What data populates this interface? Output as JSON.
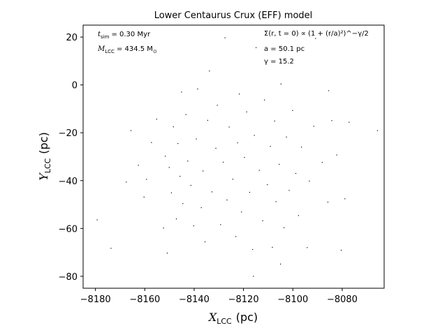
{
  "chart_data": {
    "type": "scatter",
    "title": "Lower Centaurus Crux (EFF) model",
    "xlabel": {
      "main": "X",
      "sub": "LCC",
      "unit": "(pc)"
    },
    "ylabel": {
      "main": "Y",
      "sub": "LCC",
      "unit": "(pc)"
    },
    "xlim": [
      -8185,
      -8063
    ],
    "ylim": [
      -85,
      25
    ],
    "xticks": [
      -8180,
      -8160,
      -8140,
      -8120,
      -8100,
      -8080
    ],
    "yticks": [
      20,
      0,
      -20,
      -40,
      -60,
      -80
    ],
    "xtick_labels": [
      "−8180",
      "−8160",
      "−8140",
      "−8120",
      "−8100",
      "−8080"
    ],
    "ytick_labels": [
      "20",
      "0",
      "−20",
      "−40",
      "−60",
      "−80"
    ],
    "grid": false,
    "marker_color": "#000000",
    "annotations": {
      "tsim": {
        "symbol": "t",
        "sub": "sim",
        "text": "= 0.30 Myr"
      },
      "mass": {
        "symbol": "M",
        "sub": "LCC",
        "text": "= 434.5 M",
        "sub2": "⊙"
      },
      "profile": {
        "text": "Σ(r, t = 0) ∝ (1 + (r/a)²)^−γ/2"
      },
      "a": {
        "text": "a = 50.1 pc"
      },
      "gamma": {
        "text": "γ = 15.2"
      }
    },
    "points": [
      [
        -8179.3,
        -56.4
      ],
      [
        -8173.7,
        -68.3
      ],
      [
        -8167.5,
        -40.6
      ],
      [
        -8165.6,
        -19.1
      ],
      [
        -8162.6,
        -33.6
      ],
      [
        -8160.3,
        -46.9
      ],
      [
        -8159.3,
        -39.5
      ],
      [
        -8157.3,
        -24.1
      ],
      [
        -8155.2,
        -14.3
      ],
      [
        -8152.4,
        -59.8
      ],
      [
        -8151.7,
        -29.8
      ],
      [
        -8150.9,
        -70.3
      ],
      [
        -8150.1,
        -34.5
      ],
      [
        -8149.2,
        -45.1
      ],
      [
        -8148.4,
        -17.5
      ],
      [
        -8147.2,
        -56.0
      ],
      [
        -8146.6,
        -24.5
      ],
      [
        -8145.7,
        -38.2
      ],
      [
        -8145.1,
        -3.0
      ],
      [
        -8144.6,
        -49.6
      ],
      [
        -8143.3,
        -12.4
      ],
      [
        -8142.6,
        -31.8
      ],
      [
        -8141.3,
        -42.0
      ],
      [
        -8140.2,
        -58.9
      ],
      [
        -8139.1,
        -22.6
      ],
      [
        -8138.6,
        -1.7
      ],
      [
        -8137.1,
        -51.3
      ],
      [
        -8136.4,
        -36.0
      ],
      [
        -8135.6,
        -65.6
      ],
      [
        -8134.5,
        -14.8
      ],
      [
        -8133.8,
        5.8
      ],
      [
        -8132.8,
        -44.7
      ],
      [
        -8131.2,
        -26.5
      ],
      [
        -8130.6,
        -8.5
      ],
      [
        -8129.3,
        -58.4
      ],
      [
        -8128.2,
        -32.3
      ],
      [
        -8127.5,
        19.7
      ],
      [
        -8126.7,
        -48.1
      ],
      [
        -8125.8,
        -17.6
      ],
      [
        -8124.3,
        -39.4
      ],
      [
        -8123.1,
        -63.4
      ],
      [
        -8122.4,
        -24.2
      ],
      [
        -8121.7,
        -3.8
      ],
      [
        -8120.8,
        -53.1
      ],
      [
        -8119.6,
        -30.3
      ],
      [
        -8118.7,
        -11.3
      ],
      [
        -8117.5,
        -44.9
      ],
      [
        -8116.3,
        -68.8
      ],
      [
        -8115.6,
        -21.1
      ],
      [
        -8114.9,
        15.6
      ],
      [
        -8113.6,
        -35.7
      ],
      [
        -8112.2,
        -56.8
      ],
      [
        -8111.5,
        -6.3
      ],
      [
        -8110.3,
        -41.7
      ],
      [
        -8109.1,
        -25.7
      ],
      [
        -8108.3,
        -67.9
      ],
      [
        -8107.4,
        -15.1
      ],
      [
        -8106.8,
        -48.8
      ],
      [
        -8105.5,
        -33.2
      ],
      [
        -8104.8,
        0.4
      ],
      [
        -8103.6,
        -59.7
      ],
      [
        -8102.6,
        -21.8
      ],
      [
        -8101.5,
        -44.1
      ],
      [
        -8100.1,
        -10.7
      ],
      [
        -8098.8,
        -37.0
      ],
      [
        -8097.7,
        -54.6
      ],
      [
        -8096.5,
        -26.0
      ],
      [
        -8094.2,
        -68.0
      ],
      [
        -8093.3,
        -40.2
      ],
      [
        -8091.5,
        -17.3
      ],
      [
        -8090.8,
        19.4
      ],
      [
        -8088.1,
        -32.4
      ],
      [
        -8085.8,
        -49.0
      ],
      [
        -8085.5,
        -2.4
      ],
      [
        -8084.2,
        -14.9
      ],
      [
        -8082.2,
        -29.3
      ],
      [
        -8080.4,
        -69.1
      ],
      [
        -8078.9,
        -47.6
      ],
      [
        -8077.2,
        -15.6
      ],
      [
        -8065.7,
        -19.1
      ],
      [
        -8105.0,
        -74.9
      ],
      [
        -8116.0,
        -80.0
      ]
    ]
  }
}
